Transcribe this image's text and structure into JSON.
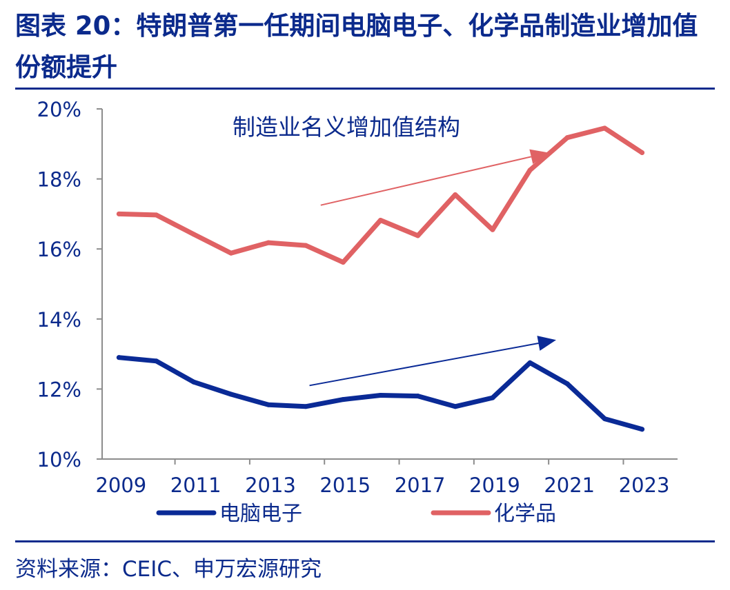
{
  "header": {
    "title": "图表 20：特朗普第一任期间电脑电子、化学品制造业增加值份额提升"
  },
  "footer": {
    "source": "资料来源：CEIC、申万宏源研究"
  },
  "colors": {
    "electronics": "#0a2a96",
    "chemicals": "#e06264",
    "text": "#0b2a8c",
    "axis": "#8c8c8c"
  },
  "chart_data": {
    "type": "line",
    "title": "",
    "annotation": "制造业名义增加值结构",
    "xlabel": "",
    "ylabel": "",
    "x_tick_labels": [
      "2009",
      "2011",
      "2013",
      "2015",
      "2017",
      "2019",
      "2021",
      "2023"
    ],
    "y_tick_labels": [
      "10%",
      "12%",
      "14%",
      "16%",
      "18%",
      "20%"
    ],
    "ylim": [
      10,
      20
    ],
    "y_unit": "%",
    "grid": false,
    "legend_position": "bottom",
    "x": [
      2009,
      2010,
      2011,
      2012,
      2013,
      2014,
      2015,
      2016,
      2017,
      2018,
      2019,
      2020,
      2021,
      2022,
      2023
    ],
    "series": [
      {
        "name": "电脑电子",
        "color": "#0a2a96",
        "values": [
          12.9,
          12.8,
          12.2,
          11.85,
          11.55,
          11.5,
          11.7,
          11.82,
          11.8,
          11.5,
          11.75,
          12.75,
          12.15,
          11.15,
          10.85
        ]
      },
      {
        "name": "化学品",
        "color": "#e06264",
        "values": [
          17.0,
          16.97,
          16.42,
          15.88,
          16.18,
          16.1,
          15.62,
          16.82,
          16.38,
          17.55,
          16.55,
          18.25,
          19.18,
          19.45,
          18.75
        ]
      }
    ],
    "trend_arrows": [
      {
        "series": "化学品",
        "color": "#e06264",
        "from": [
          2014.4,
          17.25
        ],
        "to": [
          2020.5,
          18.75
        ]
      },
      {
        "series": "电脑电子",
        "color": "#0a2a96",
        "from": [
          2014.1,
          12.1
        ],
        "to": [
          2020.7,
          13.4
        ]
      }
    ]
  }
}
